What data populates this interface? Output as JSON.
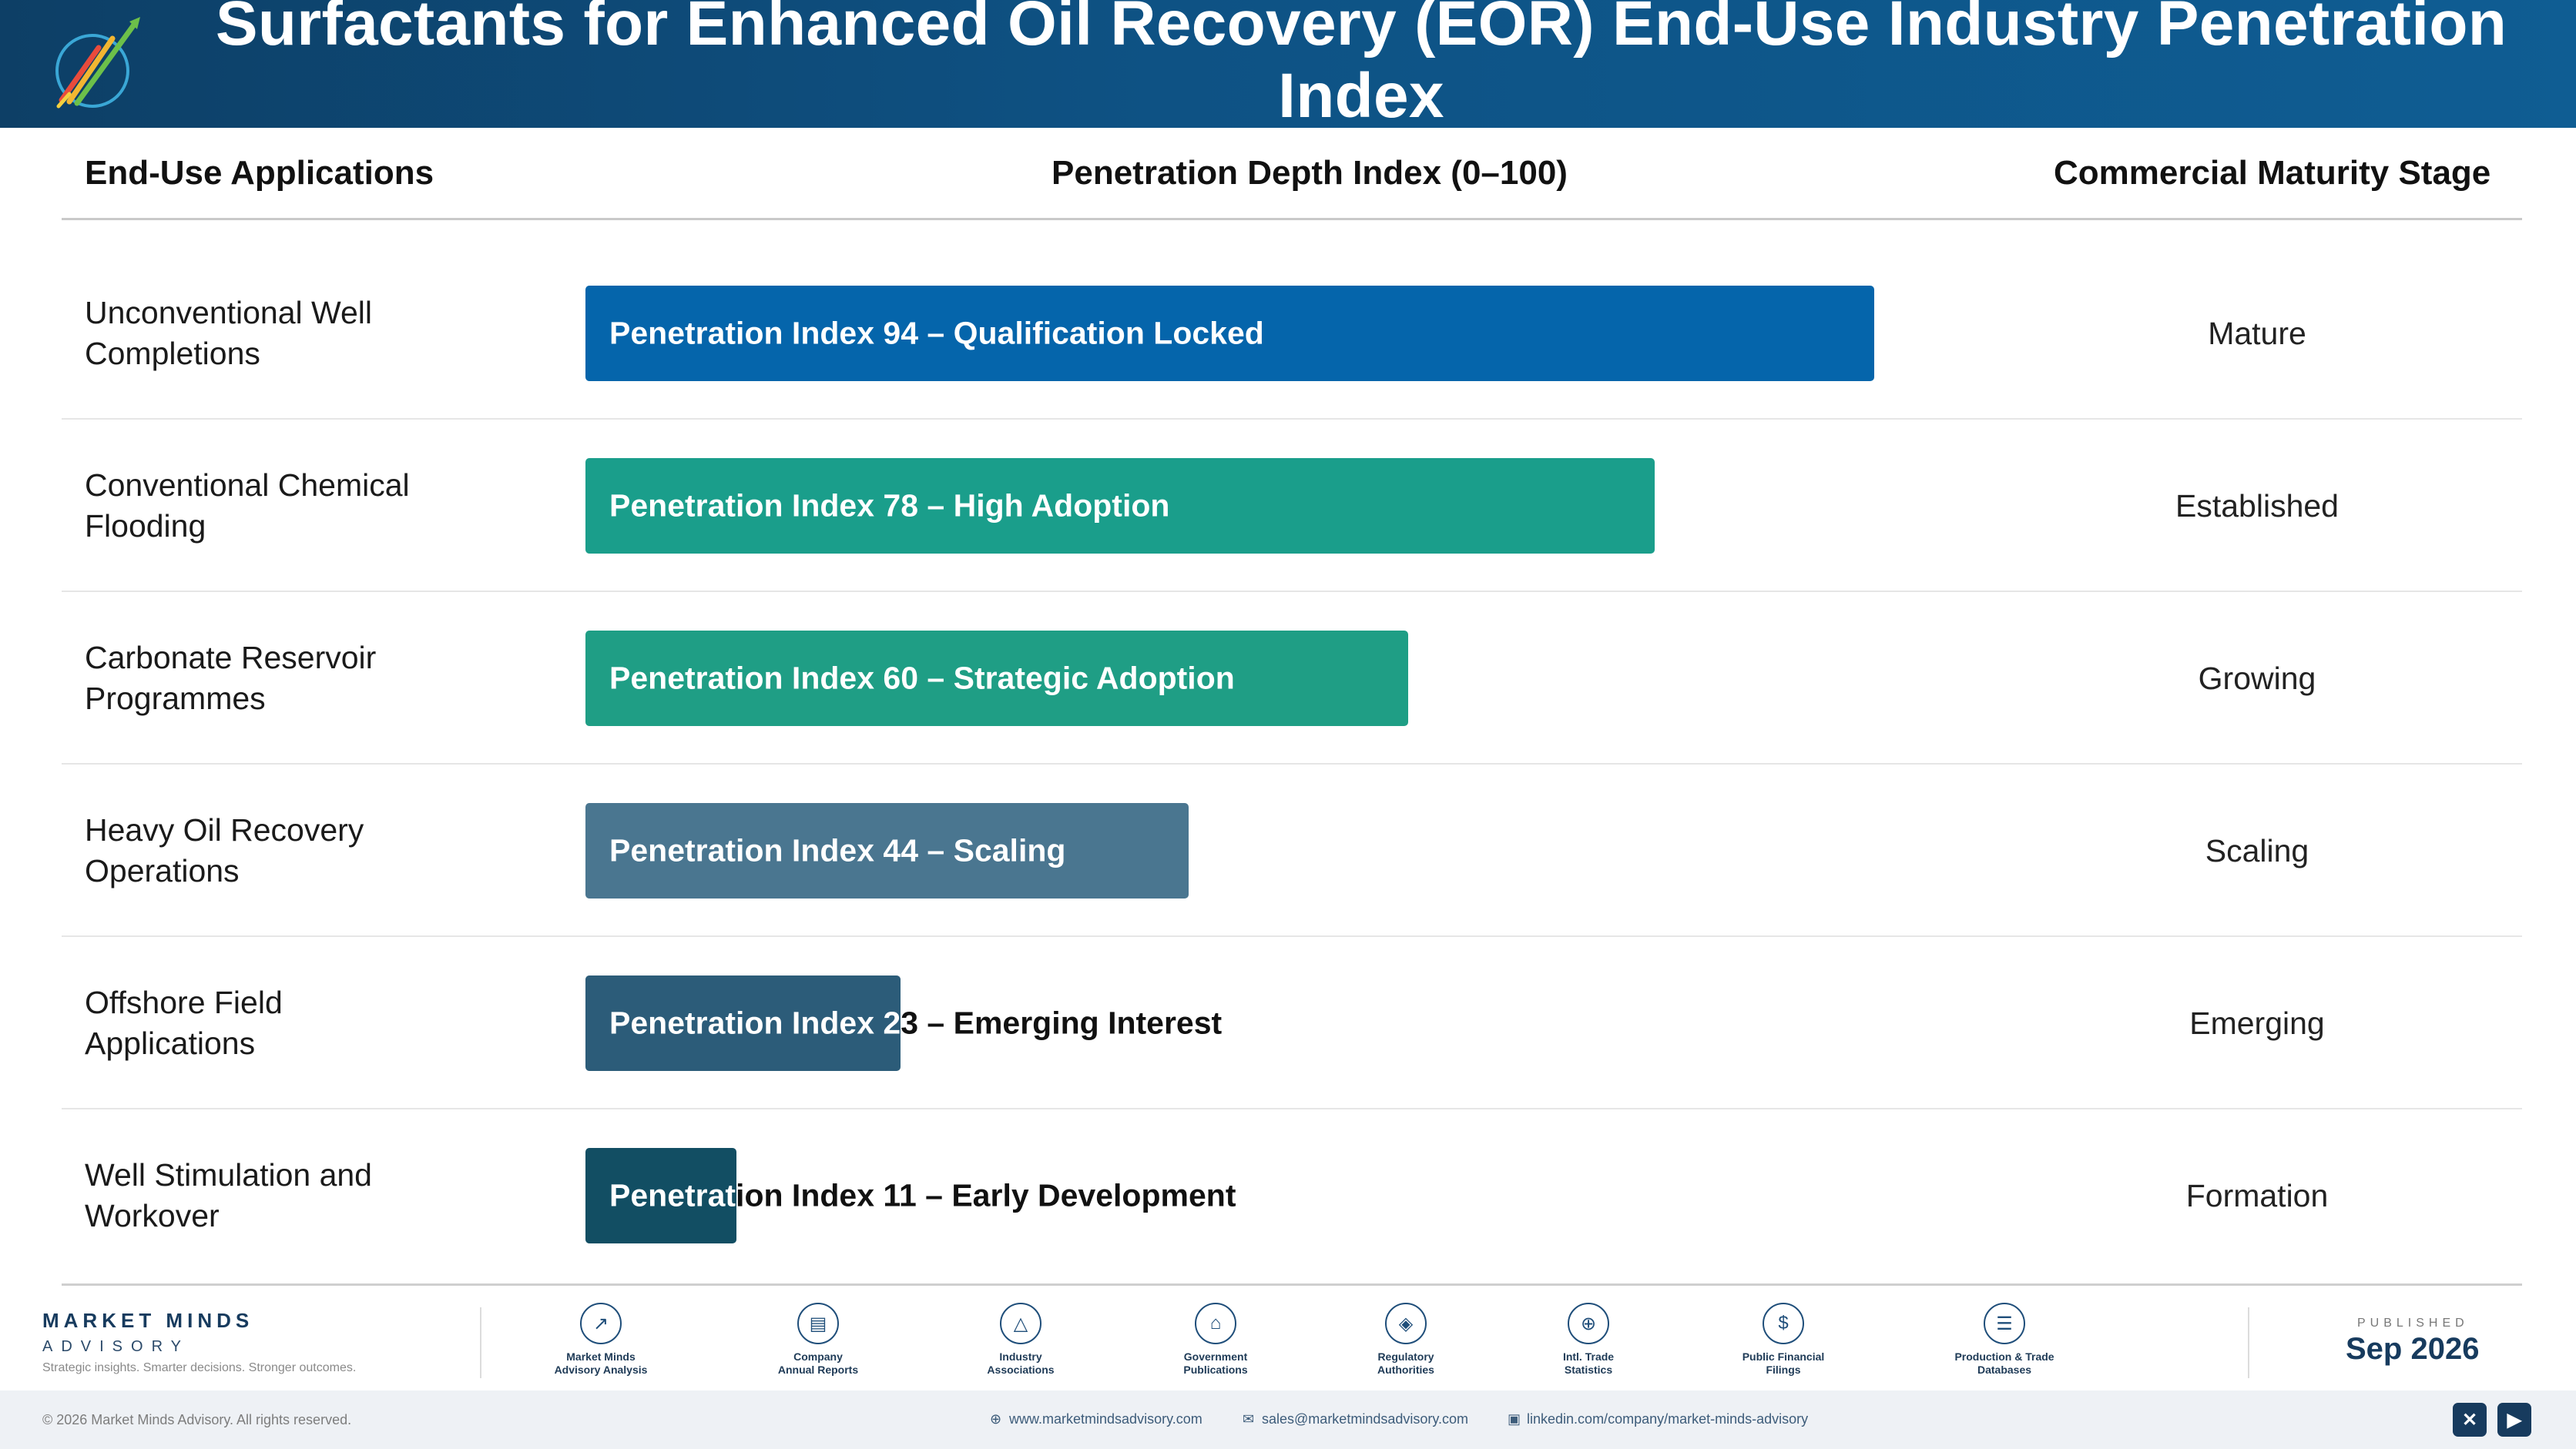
{
  "header": {
    "title": "Surfactants for Enhanced Oil Recovery (EOR) End-Use Industry Penetration Index"
  },
  "columns": {
    "applications": "End-Use Applications",
    "index": "Penetration Depth Index (0–100)",
    "stage": "Commercial Maturity Stage"
  },
  "chart_data": {
    "type": "bar",
    "orientation": "horizontal",
    "xlim": [
      0,
      100
    ],
    "categories": [
      [
        "Unconventional Well",
        "Completions"
      ],
      [
        "Conventional Chemical",
        "Flooding"
      ],
      [
        "Carbonate Reservoir",
        "Programmes"
      ],
      [
        "Heavy Oil Recovery",
        "Operations"
      ],
      [
        "Offshore Field",
        "Applications"
      ],
      [
        "Well Stimulation and",
        "Workover"
      ]
    ],
    "values": [
      94,
      78,
      60,
      44,
      23,
      11
    ],
    "bar_labels": [
      "Penetration Index 94 – Qualification Locked",
      "Penetration Index 78 – High Adoption",
      "Penetration Index 60 – Strategic Adoption",
      "Penetration Index 44 – Scaling",
      "Penetration Index 23 – Emerging Interest",
      "Penetration Index 11 – Early Development"
    ],
    "stages": [
      "Mature",
      "Established",
      "Growing",
      "Scaling",
      "Emerging",
      "Formation"
    ],
    "colors": [
      "#0565ab",
      "#1a9e8b",
      "#1f9e85",
      "#4a7690",
      "#2c5c79",
      "#124e63"
    ]
  },
  "footer": {
    "brand_name": "MARKET MINDS",
    "brand_sub": "ADVISORY",
    "tagline": "Strategic insights. Smarter decisions. Stronger outcomes.",
    "sources": [
      {
        "icon": "line-chart-icon",
        "glyph": "↗",
        "lines": [
          "Market Minds",
          "Advisory Analysis"
        ]
      },
      {
        "icon": "document-icon",
        "glyph": "▤",
        "lines": [
          "Company",
          "Annual Reports"
        ]
      },
      {
        "icon": "network-icon",
        "glyph": "△",
        "lines": [
          "Industry",
          "Associations"
        ]
      },
      {
        "icon": "government-building-icon",
        "glyph": "⌂",
        "lines": [
          "Government",
          "Publications"
        ]
      },
      {
        "icon": "shield-icon",
        "glyph": "◈",
        "lines": [
          "Regulatory",
          "Authorities"
        ]
      },
      {
        "icon": "globe-icon",
        "glyph": "⊕",
        "lines": [
          "Intl. Trade",
          "Statistics"
        ]
      },
      {
        "icon": "coin-icon",
        "glyph": "$",
        "lines": [
          "Public Financial",
          "Filings"
        ]
      },
      {
        "icon": "database-icon",
        "glyph": "☰",
        "lines": [
          "Production & Trade",
          "Databases"
        ]
      }
    ],
    "published_label": "PUBLISHED",
    "published_date": "Sep 2026",
    "copyright": "© 2026 Market Minds Advisory. All rights reserved.",
    "website": "www.marketmindsadvisory.com",
    "email": "sales@marketmindsadvisory.com",
    "linkedin": "linkedin.com/company/market-minds-advisory"
  }
}
